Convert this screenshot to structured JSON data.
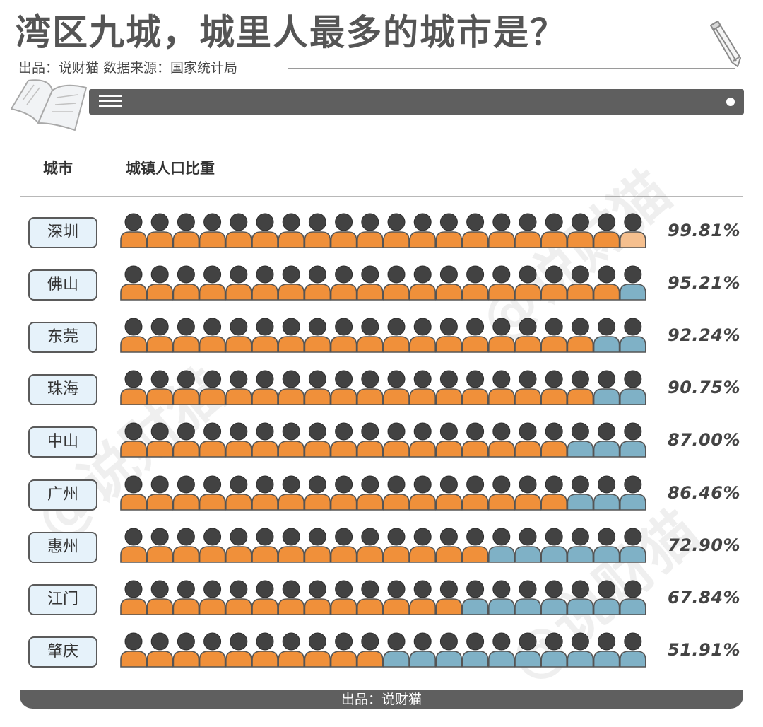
{
  "header": {
    "title": "湾区九城，城里人最多的城市是？",
    "subtitle": "出品：说财猫   数据来源：国家统计局"
  },
  "columns": {
    "city": "城市",
    "ratio": "城镇人口比重"
  },
  "footer": {
    "text": "出品：说财猫"
  },
  "watermark": {
    "text": "@说财猫"
  },
  "colors": {
    "urban": "#f0903a",
    "urban_partial": "#f5bf8e",
    "rural": "#7fb1c6",
    "head": "#424242",
    "outline": "#555555",
    "bar": "#5f5f5f",
    "label_bg": "#e6f2fa"
  },
  "icons": {
    "hamburger": "hamburger-icon",
    "dot": "dot-icon",
    "pencil": "pencil-icon",
    "book": "book-icon",
    "person": "person-icon"
  },
  "chart_data": {
    "type": "table",
    "icons_per_row": 20,
    "categories": [
      "深圳",
      "佛山",
      "东莞",
      "珠海",
      "中山",
      "广州",
      "惠州",
      "江门",
      "肇庆"
    ],
    "values": [
      99.81,
      95.21,
      92.24,
      90.75,
      87.0,
      86.46,
      72.9,
      67.84,
      51.91
    ],
    "labels": [
      "99.81%",
      "95.21%",
      "92.24%",
      "90.75%",
      "87.00%",
      "86.46%",
      "72.90%",
      "67.84%",
      "51.91%"
    ],
    "urban_icons": [
      19,
      19,
      18,
      18,
      17,
      17,
      14,
      13,
      10
    ],
    "xlabel": "城市",
    "ylabel": "城镇人口比重"
  }
}
